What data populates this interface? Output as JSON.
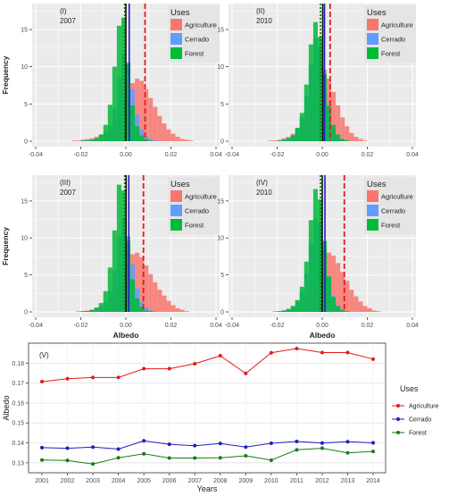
{
  "colors": {
    "agriculture": "#f8766d",
    "cerrado": "#619cff",
    "forest": "#00ba38",
    "panel_bg": "#ebebeb",
    "grid": "#ffffff",
    "line_agriculture": "#e41a1c",
    "line_cerrado": "#1f1fbf",
    "line_forest": "#1a7a1a"
  },
  "chart_data": [
    {
      "type": "bar",
      "panel_label": "(I)",
      "year": "2007",
      "ylabel": "Frequency",
      "xlabel": "",
      "xlim": [
        -0.04,
        0.04
      ],
      "ylim": [
        0,
        18
      ],
      "xticks": [
        "-0.04",
        "-0.02",
        "0.00",
        "0.02",
        "0.04"
      ],
      "yticks": [
        "0",
        "5",
        "10",
        "15"
      ],
      "legend_title": "Uses",
      "legend": [
        "Agriculture",
        "Cerrado",
        "Forest"
      ],
      "bin_start": -0.03,
      "bin_width": 0.002,
      "series": [
        {
          "name": "Agriculture",
          "values": [
            0,
            0,
            0,
            0.1,
            0.1,
            0.2,
            0.3,
            0.4,
            0.6,
            0.9,
            1.2,
            1.7,
            2.4,
            3.3,
            5.0,
            6.6,
            7.8,
            8.4,
            8.1,
            7.0,
            5.8,
            4.6,
            3.4,
            2.4,
            1.6,
            1.0,
            0.6,
            0.3,
            0.2,
            0.1
          ]
        },
        {
          "name": "Cerrado",
          "values": [
            0,
            0,
            0,
            0,
            0,
            0.1,
            0.1,
            0.2,
            0.3,
            0.5,
            1.0,
            2.0,
            4.4,
            8.6,
            11.8,
            10.6,
            7.0,
            3.6,
            1.6,
            0.7,
            0.3,
            0.1,
            0,
            0,
            0,
            0,
            0,
            0,
            0,
            0
          ]
        },
        {
          "name": "Forest",
          "values": [
            0,
            0,
            0,
            0,
            0,
            0.1,
            0.1,
            0.2,
            0.4,
            0.9,
            2.2,
            4.9,
            10.0,
            15.5,
            16.6,
            10.4,
            4.8,
            2.0,
            0.8,
            0.3,
            0.1,
            0,
            0,
            0,
            0,
            0,
            0,
            0,
            0,
            0
          ]
        }
      ],
      "vlines": [
        {
          "x": -0.0005,
          "style": "dotted",
          "color": "#1a7a1a"
        },
        {
          "x": 0.0,
          "style": "solid",
          "color": "#111111"
        },
        {
          "x": 0.0015,
          "style": "solid",
          "color": "#1f1fbf"
        },
        {
          "x": 0.0085,
          "style": "dashed",
          "color": "#e41a1c"
        }
      ]
    },
    {
      "type": "bar",
      "panel_label": "(II)",
      "year": "2010",
      "ylabel": "",
      "xlabel": "",
      "xlim": [
        -0.04,
        0.04
      ],
      "ylim": [
        0,
        18
      ],
      "xticks": [
        "-0.04",
        "-0.02",
        "0.00",
        "0.02",
        "0.04"
      ],
      "yticks": [
        "0",
        "5",
        "10",
        "15"
      ],
      "legend_title": "Uses",
      "legend": [
        "Agriculture",
        "Cerrado",
        "Forest"
      ],
      "bin_start": -0.03,
      "bin_width": 0.002,
      "series": [
        {
          "name": "Agriculture",
          "values": [
            0,
            0,
            0,
            0.1,
            0.1,
            0.2,
            0.4,
            0.6,
            1.0,
            1.6,
            2.6,
            4.0,
            6.0,
            8.2,
            9.6,
            9.6,
            8.4,
            6.6,
            4.8,
            3.2,
            2.0,
            1.1,
            0.6,
            0.3,
            0.1,
            0,
            0,
            0,
            0,
            0
          ]
        },
        {
          "name": "Cerrado",
          "values": [
            0,
            0,
            0,
            0,
            0,
            0.1,
            0.2,
            0.4,
            0.8,
            1.6,
            3.2,
            6.0,
            10.4,
            13.8,
            12.6,
            8.0,
            4.0,
            1.8,
            0.7,
            0.3,
            0.1,
            0,
            0,
            0,
            0,
            0,
            0,
            0,
            0,
            0
          ]
        },
        {
          "name": "Forest",
          "values": [
            0,
            0,
            0,
            0,
            0,
            0.1,
            0.2,
            0.4,
            0.8,
            1.8,
            3.8,
            7.6,
            13.0,
            16.0,
            14.0,
            9.0,
            4.8,
            2.2,
            0.9,
            0.3,
            0.1,
            0,
            0,
            0,
            0,
            0,
            0,
            0,
            0,
            0
          ]
        }
      ],
      "vlines": [
        {
          "x": -0.0008,
          "style": "dotted",
          "color": "#1a7a1a"
        },
        {
          "x": 0.0002,
          "style": "solid",
          "color": "#111111"
        },
        {
          "x": 0.001,
          "style": "solid",
          "color": "#1f1fbf"
        },
        {
          "x": 0.0035,
          "style": "dashed",
          "color": "#e41a1c"
        }
      ]
    },
    {
      "type": "bar",
      "panel_label": "(III)",
      "year": "2007",
      "ylabel": "Frequency",
      "xlabel": "Albedo",
      "xlim": [
        -0.04,
        0.04
      ],
      "ylim": [
        0,
        18
      ],
      "xticks": [
        "-0.04",
        "-0.02",
        "0.00",
        "0.02",
        "0.04"
      ],
      "yticks": [
        "0",
        "5",
        "10",
        "15"
      ],
      "legend_title": "Uses",
      "legend": [
        "Agriculture",
        "Cerrado",
        "Forest"
      ],
      "bin_start": -0.03,
      "bin_width": 0.002,
      "series": [
        {
          "name": "Agriculture",
          "values": [
            0,
            0,
            0,
            0,
            0.1,
            0.1,
            0.2,
            0.3,
            0.5,
            0.8,
            1.2,
            1.8,
            2.6,
            3.6,
            5.2,
            6.8,
            7.8,
            8.0,
            7.4,
            6.3,
            5.1,
            4.0,
            3.0,
            2.2,
            1.5,
            0.9,
            0.5,
            0.3,
            0.1,
            0
          ]
        },
        {
          "name": "Cerrado",
          "values": [
            0,
            0,
            0,
            0,
            0,
            0.1,
            0.1,
            0.2,
            0.4,
            0.7,
            1.4,
            2.8,
            5.6,
            10.2,
            12.6,
            10.2,
            6.4,
            3.2,
            1.4,
            0.6,
            0.2,
            0.1,
            0,
            0,
            0,
            0,
            0,
            0,
            0,
            0
          ]
        },
        {
          "name": "Forest",
          "values": [
            0,
            0,
            0,
            0,
            0,
            0.1,
            0.1,
            0.3,
            0.6,
            1.2,
            2.8,
            6.0,
            11.0,
            17.2,
            16.4,
            9.6,
            4.4,
            1.8,
            0.7,
            0.2,
            0.1,
            0,
            0,
            0,
            0,
            0,
            0,
            0,
            0,
            0
          ]
        }
      ],
      "vlines": [
        {
          "x": -0.0005,
          "style": "dotted",
          "color": "#1a7a1a"
        },
        {
          "x": 0.0001,
          "style": "solid",
          "color": "#111111"
        },
        {
          "x": 0.0013,
          "style": "solid",
          "color": "#1f1fbf"
        },
        {
          "x": 0.0078,
          "style": "dashed",
          "color": "#e41a1c"
        }
      ]
    },
    {
      "type": "bar",
      "panel_label": "(IV)",
      "year": "2010",
      "ylabel": "",
      "xlabel": "Albedo",
      "xlim": [
        -0.04,
        0.04
      ],
      "ylim": [
        0,
        18
      ],
      "xticks": [
        "-0.04",
        "-0.02",
        "0.00",
        "0.02",
        "0.04"
      ],
      "yticks": [
        "0",
        "5",
        "10",
        "15"
      ],
      "legend_title": "Uses",
      "legend": [
        "Agriculture",
        "Cerrado",
        "Forest"
      ],
      "bin_start": -0.03,
      "bin_width": 0.002,
      "series": [
        {
          "name": "Agriculture",
          "values": [
            0,
            0,
            0,
            0,
            0.1,
            0.1,
            0.2,
            0.3,
            0.5,
            0.8,
            1.3,
            2.0,
            3.0,
            4.4,
            6.0,
            7.4,
            8.0,
            7.6,
            6.6,
            5.4,
            4.2,
            3.0,
            2.1,
            1.4,
            0.8,
            0.5,
            0.2,
            0.1,
            0,
            0
          ]
        },
        {
          "name": "Cerrado",
          "values": [
            0,
            0,
            0,
            0,
            0,
            0.1,
            0.2,
            0.4,
            0.7,
            1.4,
            2.8,
            5.2,
            9.2,
            12.6,
            12.0,
            8.4,
            4.8,
            2.2,
            0.9,
            0.3,
            0.1,
            0,
            0,
            0,
            0,
            0,
            0,
            0,
            0,
            0
          ]
        },
        {
          "name": "Forest",
          "values": [
            0,
            0,
            0,
            0,
            0,
            0.1,
            0.2,
            0.4,
            0.8,
            1.6,
            3.4,
            6.8,
            12.4,
            16.6,
            15.2,
            9.6,
            4.8,
            2.0,
            0.8,
            0.3,
            0.1,
            0,
            0,
            0,
            0,
            0,
            0,
            0,
            0,
            0
          ]
        }
      ],
      "vlines": [
        {
          "x": -0.0008,
          "style": "dotted",
          "color": "#1a7a1a"
        },
        {
          "x": 0.0,
          "style": "solid",
          "color": "#111111"
        },
        {
          "x": 0.0012,
          "style": "solid",
          "color": "#1f1fbf"
        },
        {
          "x": 0.0098,
          "style": "dashed",
          "color": "#e41a1c"
        }
      ]
    },
    {
      "type": "line",
      "panel_label": "(V)",
      "xlabel": "Years",
      "ylabel": "Albedo",
      "x": [
        "2001",
        "2002",
        "2003",
        "2004",
        "2005",
        "2006",
        "2007",
        "2008",
        "2009",
        "2010",
        "2011",
        "2012",
        "2013",
        "2014"
      ],
      "ylim": [
        0.125,
        0.19
      ],
      "yticks": [
        "0.13",
        "0.14",
        "0.15",
        "0.16",
        "0.17",
        "0.18"
      ],
      "legend_title": "Uses",
      "series": [
        {
          "name": "Agriculture",
          "values": [
            0.1707,
            0.1722,
            0.1728,
            0.1728,
            0.1772,
            0.1772,
            0.1797,
            0.1837,
            0.1748,
            0.1852,
            0.1873,
            0.1853,
            0.1853,
            0.182
          ]
        },
        {
          "name": "Cerrado",
          "values": [
            0.1376,
            0.1373,
            0.1379,
            0.1369,
            0.141,
            0.1393,
            0.1386,
            0.1397,
            0.1379,
            0.1398,
            0.1407,
            0.1399,
            0.1406,
            0.14
          ]
        },
        {
          "name": "Forest",
          "values": [
            0.1314,
            0.1312,
            0.1294,
            0.1325,
            0.1345,
            0.1324,
            0.1324,
            0.1325,
            0.1335,
            0.1313,
            0.1365,
            0.1373,
            0.135,
            0.1357
          ]
        }
      ]
    }
  ]
}
